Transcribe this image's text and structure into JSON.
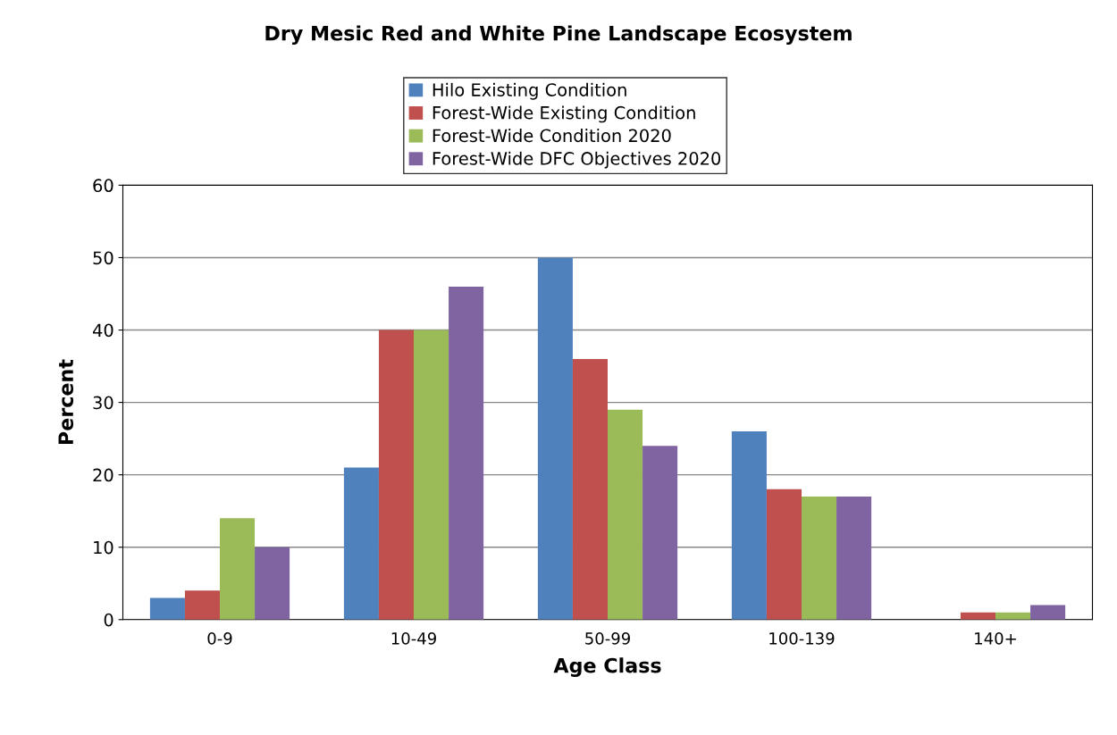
{
  "chart_data": {
    "type": "bar",
    "title": "Dry Mesic Red and White Pine Landscape Ecosystem",
    "xlabel": "Age Class",
    "ylabel": "Percent",
    "categories": [
      "0-9",
      "10-49",
      "50-99",
      "100-139",
      "140+"
    ],
    "series": [
      {
        "name": "Hilo Existing Condition",
        "color": "#4f81bd",
        "values": [
          3,
          21,
          50,
          26,
          0
        ]
      },
      {
        "name": "Forest-Wide Existing Condition",
        "color": "#c0504d",
        "values": [
          4,
          40,
          36,
          18,
          1
        ]
      },
      {
        "name": "Forest-Wide Condition 2020",
        "color": "#9bbb59",
        "values": [
          14,
          40,
          29,
          17,
          1
        ]
      },
      {
        "name": "Forest-Wide DFC Objectives 2020",
        "color": "#8064a2",
        "values": [
          10,
          46,
          24,
          17,
          2
        ]
      }
    ],
    "ylim": [
      0,
      60
    ],
    "yticks": [
      0,
      10,
      20,
      30,
      40,
      50,
      60
    ],
    "grid": "y",
    "legend": "top"
  }
}
